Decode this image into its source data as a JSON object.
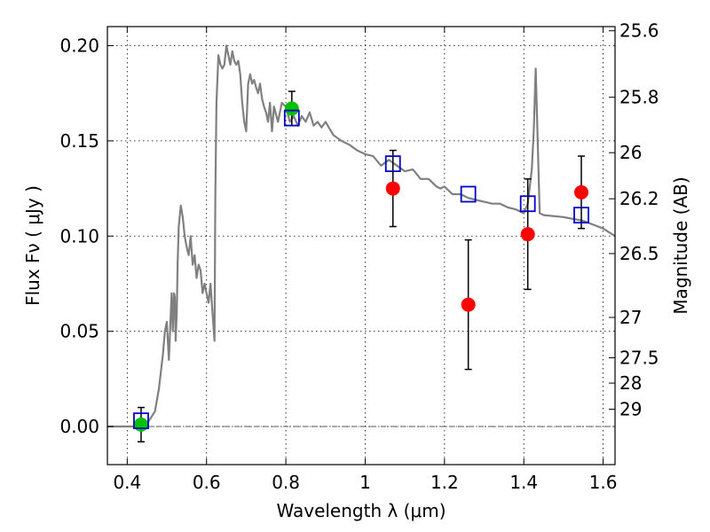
{
  "chart_data": {
    "type": "scatter",
    "xlabel": "Wavelength  λ (μm)",
    "ylabel": "Flux  Fν  ( μJy )",
    "y2label": "Magnitude (AB)",
    "xlim": [
      0.35,
      1.63
    ],
    "ylim": [
      -0.02,
      0.21
    ],
    "x_ticks": [
      {
        "value": 0.4,
        "label": "0.4"
      },
      {
        "value": 0.6,
        "label": "0.6"
      },
      {
        "value": 0.8,
        "label": "0.8"
      },
      {
        "value": 1.0,
        "label": "1"
      },
      {
        "value": 1.2,
        "label": "1.2"
      },
      {
        "value": 1.4,
        "label": "1.4"
      },
      {
        "value": 1.6,
        "label": "1.6"
      }
    ],
    "y_ticks": [
      {
        "value": 0.0,
        "label": "0.00"
      },
      {
        "value": 0.05,
        "label": "0.05"
      },
      {
        "value": 0.1,
        "label": "0.10"
      },
      {
        "value": 0.15,
        "label": "0.15"
      },
      {
        "value": 0.2,
        "label": "0.20"
      }
    ],
    "y2_ticks": [
      {
        "label": "25.6",
        "flux": 0.2078
      },
      {
        "label": "25.8",
        "flux": 0.1729
      },
      {
        "label": "26",
        "flux": 0.1438
      },
      {
        "label": "26.2",
        "flux": 0.1196
      },
      {
        "label": "26.5",
        "flux": 0.0908
      },
      {
        "label": "27",
        "flux": 0.0573
      },
      {
        "label": "27.5",
        "flux": 0.0361
      },
      {
        "label": "28",
        "flux": 0.0228
      },
      {
        "label": "29",
        "flux": 0.0091
      }
    ],
    "grid": true,
    "series": [
      {
        "kind": "line",
        "color": "#808080",
        "x": [
          0.35,
          0.44,
          0.455,
          0.47,
          0.48,
          0.49,
          0.495,
          0.5,
          0.505,
          0.51,
          0.512,
          0.515,
          0.518,
          0.52,
          0.522,
          0.525,
          0.527,
          0.53,
          0.535,
          0.54,
          0.545,
          0.55,
          0.555,
          0.56,
          0.565,
          0.57,
          0.575,
          0.58,
          0.585,
          0.59,
          0.595,
          0.6,
          0.605,
          0.61,
          0.615,
          0.62,
          0.622,
          0.625,
          0.63,
          0.635,
          0.64,
          0.645,
          0.65,
          0.655,
          0.66,
          0.665,
          0.67,
          0.675,
          0.68,
          0.685,
          0.69,
          0.695,
          0.7,
          0.705,
          0.71,
          0.715,
          0.72,
          0.725,
          0.73,
          0.735,
          0.74,
          0.745,
          0.75,
          0.755,
          0.76,
          0.765,
          0.77,
          0.78,
          0.79,
          0.8,
          0.81,
          0.82,
          0.83,
          0.84,
          0.85,
          0.86,
          0.87,
          0.88,
          0.89,
          0.9,
          0.92,
          0.94,
          0.96,
          0.98,
          1.0,
          1.02,
          1.04,
          1.06,
          1.08,
          1.1,
          1.12,
          1.14,
          1.16,
          1.18,
          1.19,
          1.2,
          1.22,
          1.24,
          1.26,
          1.28,
          1.3,
          1.32,
          1.34,
          1.36,
          1.38,
          1.4,
          1.41,
          1.42,
          1.425,
          1.43,
          1.44,
          1.45,
          1.5,
          1.55,
          1.6,
          1.63
        ],
        "y": [
          0.0,
          0.0,
          0.003,
          0.008,
          0.02,
          0.038,
          0.05,
          0.055,
          0.035,
          0.06,
          0.07,
          0.05,
          0.07,
          0.068,
          0.045,
          0.06,
          0.085,
          0.105,
          0.116,
          0.11,
          0.1,
          0.094,
          0.09,
          0.1,
          0.085,
          0.09,
          0.078,
          0.085,
          0.082,
          0.07,
          0.075,
          0.07,
          0.065,
          0.075,
          0.06,
          0.045,
          0.12,
          0.17,
          0.195,
          0.19,
          0.188,
          0.19,
          0.2,
          0.195,
          0.19,
          0.197,
          0.192,
          0.19,
          0.192,
          0.185,
          0.17,
          0.16,
          0.155,
          0.18,
          0.185,
          0.18,
          0.182,
          0.178,
          0.175,
          0.18,
          0.172,
          0.168,
          0.165,
          0.16,
          0.17,
          0.155,
          0.168,
          0.16,
          0.17,
          0.168,
          0.16,
          0.163,
          0.158,
          0.163,
          0.16,
          0.165,
          0.158,
          0.16,
          0.157,
          0.16,
          0.153,
          0.15,
          0.148,
          0.145,
          0.143,
          0.142,
          0.137,
          0.14,
          0.137,
          0.134,
          0.135,
          0.13,
          0.13,
          0.126,
          0.125,
          0.126,
          0.122,
          0.122,
          0.12,
          0.119,
          0.118,
          0.117,
          0.117,
          0.115,
          0.114,
          0.112,
          0.117,
          0.135,
          0.155,
          0.188,
          0.112,
          0.111,
          0.11,
          0.108,
          0.104,
          0.1
        ]
      },
      {
        "kind": "points",
        "marker": "circle",
        "color": "#ff0000",
        "x": [
          1.07,
          1.26,
          1.41,
          1.545
        ],
        "y": [
          0.125,
          0.064,
          0.101,
          0.123
        ],
        "yerr": [
          0.02,
          0.034,
          0.029,
          0.019
        ]
      },
      {
        "kind": "points",
        "marker": "circle",
        "color": "#00c000",
        "x": [
          0.435,
          0.815
        ],
        "y": [
          0.001,
          0.167
        ],
        "yerr": [
          0.009,
          0.009
        ]
      },
      {
        "kind": "points",
        "marker": "open-square",
        "color": "#0000cc",
        "x": [
          0.435,
          0.815,
          1.07,
          1.26,
          1.41,
          1.545
        ],
        "y": [
          0.003,
          0.162,
          0.138,
          0.122,
          0.117,
          0.111
        ]
      }
    ]
  }
}
